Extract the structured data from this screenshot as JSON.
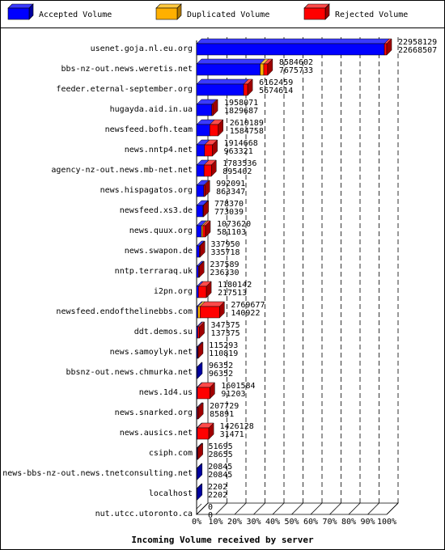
{
  "legend": [
    {
      "label": "Accepted Volume",
      "color": "#0000ff",
      "top": "#3a3aff",
      "side": "#0000a0"
    },
    {
      "label": "Duplicated Volume",
      "color": "#ffb000",
      "top": "#ffc840",
      "side": "#b07800"
    },
    {
      "label": "Rejected Volume",
      "color": "#ff0000",
      "top": "#ff4a4a",
      "side": "#a00000"
    }
  ],
  "chart_data": {
    "type": "bar",
    "orientation": "horizontal",
    "stacked": true,
    "title": "",
    "xlabel": "Incoming Volume received by server",
    "ylabel": "",
    "x_ticks": [
      "0%",
      "10%",
      "20%",
      "30%",
      "40%",
      "50%",
      "60%",
      "70%",
      "80%",
      "90%",
      "100%"
    ],
    "xlim": [
      0,
      22958129
    ],
    "grid": true,
    "legend_position": "top",
    "categories": [
      "usenet.goja.nl.eu.org",
      "bbs-nz-out.news.weretis.net",
      "feeder.eternal-september.org",
      "hugayda.aid.in.ua",
      "newsfeed.bofh.team",
      "news.nntp4.net",
      "agency-nz-out.news.mb-net.net",
      "news.hispagatos.org",
      "newsfeed.xs3.de",
      "news.quux.org",
      "news.swapon.de",
      "nntp.terraraq.uk",
      "i2pn.org",
      "newsfeed.endofthelinebbs.com",
      "ddt.demos.su",
      "news.samoylyk.net",
      "bbsnz-out.news.chmurka.net",
      "news.1d4.us",
      "news.snarked.org",
      "news.ausics.net",
      "csiph.com",
      "news-bbs-nz-out.news.tnetconsulting.net",
      "localhost",
      "nut.utcc.utoronto.ca"
    ],
    "totals": [
      22958129,
      8584602,
      6162459,
      1958071,
      2610189,
      1914668,
      1783536,
      992091,
      778370,
      1073620,
      337950,
      237589,
      1180142,
      2769677,
      347375,
      115293,
      96352,
      1601584,
      207729,
      1426128,
      51695,
      20845,
      2202,
      0
    ],
    "accepted": [
      22668507,
      7675733,
      5674614,
      1829687,
      1584758,
      963321,
      895402,
      863347,
      773039,
      581103,
      335718,
      236330,
      217513,
      140922,
      137375,
      110819,
      96352,
      91203,
      85891,
      31471,
      28655,
      20845,
      2202,
      0
    ],
    "series": [
      {
        "name": "Accepted Volume",
        "values": [
          22668507,
          7675733,
          5674614,
          1829687,
          1584758,
          963321,
          895402,
          863347,
          773039,
          581103,
          335718,
          236330,
          217513,
          140922,
          137375,
          110819,
          96352,
          91203,
          85891,
          31471,
          28655,
          20845,
          2202,
          0
        ]
      },
      {
        "name": "Duplicated Volume",
        "values": [
          0,
          430000,
          0,
          0,
          0,
          0,
          0,
          0,
          0,
          180000,
          0,
          0,
          0,
          280000,
          0,
          0,
          0,
          0,
          0,
          0,
          0,
          0,
          0,
          0
        ]
      },
      {
        "name": "Rejected Volume",
        "values": [
          289622,
          478869,
          487845,
          128384,
          1025431,
          951347,
          888134,
          128744,
          5331,
          312517,
          2232,
          1259,
          962629,
          2348755,
          210000,
          4474,
          0,
          1510381,
          121838,
          1394657,
          23040,
          0,
          0,
          0
        ]
      }
    ]
  }
}
